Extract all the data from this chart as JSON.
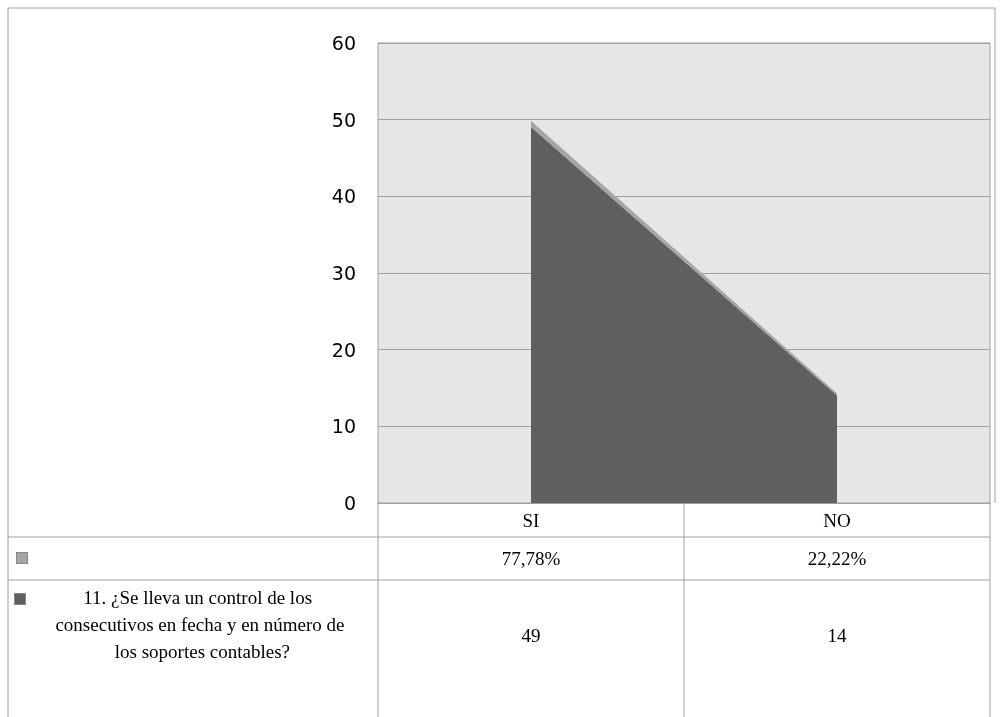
{
  "chart_data": {
    "type": "area",
    "stacked": true,
    "categories": [
      "SI",
      "NO"
    ],
    "series": [
      {
        "name": "11. ¿Se lleva un control de los consecutivos en fecha y en número de los soportes contables?",
        "color": "#5f5f5f",
        "values": [
          49,
          14
        ],
        "value_labels": [
          "49",
          "14"
        ]
      },
      {
        "color": "#a6a6a6",
        "values": [
          0.7778,
          0.2222
        ],
        "value_labels": [
          "77,78%",
          "22,22%"
        ]
      }
    ],
    "ylim": [
      0,
      60
    ],
    "yticks": [
      0,
      10,
      20,
      30,
      40,
      50,
      60
    ],
    "grid": "y",
    "legend": "bottom"
  }
}
